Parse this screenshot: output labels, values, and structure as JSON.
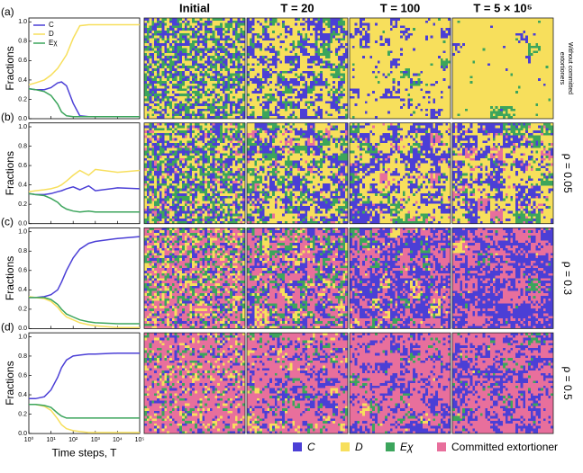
{
  "columns": [
    "Initial",
    {
      "value": 20,
      "label": "T = 20"
    },
    {
      "value": 100,
      "label": "T = 100"
    },
    {
      "value": 500000,
      "label": "T = 5 × 10⁵"
    }
  ],
  "legend": [
    {
      "name": "C",
      "color": "#4b3fd6"
    },
    {
      "name": "D",
      "color": "#f7df5c"
    },
    {
      "name": "Eχ",
      "color": "#3ca55c"
    },
    {
      "name": "Committed extortioner",
      "color": "#e86f9c"
    }
  ],
  "chart_data": [
    {
      "type": "line",
      "panel": "(a)",
      "row_label": "Without committed extortioners",
      "ylabel": "Fractions",
      "x": [
        1,
        2,
        5,
        10,
        20,
        30,
        50,
        100,
        200,
        500,
        1000,
        10000,
        100000
      ],
      "series": [
        {
          "name": "C",
          "color": "#4b3fd6",
          "values": [
            0.31,
            0.3,
            0.3,
            0.32,
            0.37,
            0.38,
            0.34,
            0.16,
            0.03,
            0.02,
            0.02,
            0.02,
            0.02
          ]
        },
        {
          "name": "D",
          "color": "#f7df5c",
          "values": [
            0.35,
            0.37,
            0.4,
            0.45,
            0.52,
            0.58,
            0.66,
            0.83,
            0.96,
            0.97,
            0.97,
            0.97,
            0.97
          ]
        },
        {
          "name": "Eχ",
          "color": "#3ca55c",
          "values": [
            0.31,
            0.3,
            0.28,
            0.24,
            0.15,
            0.07,
            0.03,
            0.02,
            0.02,
            0.02,
            0.02,
            0.02,
            0.02
          ]
        }
      ],
      "xlim": [
        1,
        100000
      ],
      "xticks": [
        1,
        10,
        100,
        1000,
        10000,
        100000
      ],
      "log_x": true,
      "ylim": [
        0,
        1.04
      ],
      "yticks": [
        {
          "value": 0,
          "label": "0.0"
        },
        {
          "value": 0.2,
          "label": "0.2"
        },
        {
          "value": 0.4,
          "label": "0.4"
        },
        {
          "value": 0.6,
          "label": "0.6"
        },
        {
          "value": 0.8,
          "label": "0.8"
        },
        {
          "value": 1,
          "label": "1.0"
        }
      ],
      "legend": "upper left"
    },
    {
      "type": "line",
      "panel": "(b)",
      "row_label": {
        "value": 0.05,
        "label": "ρ = 0.05"
      },
      "ylabel": "Fractions",
      "x": [
        1,
        2,
        5,
        10,
        20,
        30,
        50,
        100,
        200,
        500,
        1000,
        10000,
        100000
      ],
      "series": [
        {
          "name": "C",
          "color": "#4b3fd6",
          "values": [
            0.31,
            0.3,
            0.3,
            0.31,
            0.33,
            0.34,
            0.36,
            0.38,
            0.35,
            0.39,
            0.34,
            0.37,
            0.36
          ]
        },
        {
          "name": "D",
          "color": "#f7df5c",
          "values": [
            0.33,
            0.34,
            0.35,
            0.36,
            0.38,
            0.4,
            0.44,
            0.5,
            0.55,
            0.5,
            0.56,
            0.53,
            0.55
          ]
        },
        {
          "name": "Eχ",
          "color": "#3ca55c",
          "values": [
            0.31,
            0.3,
            0.29,
            0.26,
            0.22,
            0.18,
            0.15,
            0.13,
            0.12,
            0.13,
            0.12,
            0.12,
            0.12
          ]
        }
      ],
      "xlim": [
        1,
        100000
      ],
      "xticks": [
        1,
        10,
        100,
        1000,
        10000,
        100000
      ],
      "log_x": true,
      "ylim": [
        0,
        1.04
      ],
      "yticks": [
        {
          "value": 0,
          "label": "0.0"
        },
        {
          "value": 0.2,
          "label": "0.2"
        },
        {
          "value": 0.4,
          "label": "0.4"
        },
        {
          "value": 0.6,
          "label": "0.6"
        },
        {
          "value": 0.8,
          "label": "0.8"
        },
        {
          "value": 1,
          "label": "1.0"
        }
      ]
    },
    {
      "type": "line",
      "panel": "(c)",
      "row_label": {
        "value": 0.3,
        "label": "ρ = 0.3"
      },
      "ylabel": "Fractions",
      "x": [
        1,
        2,
        5,
        10,
        20,
        30,
        50,
        100,
        200,
        500,
        1000,
        10000,
        100000
      ],
      "series": [
        {
          "name": "C",
          "color": "#4b3fd6",
          "values": [
            0.32,
            0.32,
            0.33,
            0.35,
            0.4,
            0.48,
            0.6,
            0.73,
            0.82,
            0.88,
            0.9,
            0.93,
            0.95
          ]
        },
        {
          "name": "D",
          "color": "#f7df5c",
          "values": [
            0.33,
            0.32,
            0.31,
            0.28,
            0.22,
            0.17,
            0.12,
            0.09,
            0.06,
            0.04,
            0.03,
            0.01,
            0.01
          ]
        },
        {
          "name": "Eχ",
          "color": "#3ca55c",
          "values": [
            0.32,
            0.32,
            0.32,
            0.3,
            0.25,
            0.2,
            0.15,
            0.12,
            0.09,
            0.07,
            0.06,
            0.05,
            0.05
          ]
        }
      ],
      "xlim": [
        1,
        100000
      ],
      "xticks": [
        1,
        10,
        100,
        1000,
        10000,
        100000
      ],
      "log_x": true,
      "ylim": [
        0,
        1.04
      ],
      "yticks": [
        {
          "value": 0,
          "label": "0.0"
        },
        {
          "value": 0.2,
          "label": "0.2"
        },
        {
          "value": 0.4,
          "label": "0.4"
        },
        {
          "value": 0.6,
          "label": "0.6"
        },
        {
          "value": 0.8,
          "label": "0.8"
        },
        {
          "value": 1,
          "label": "1.0"
        }
      ]
    },
    {
      "type": "line",
      "panel": "(d)",
      "row_label": {
        "value": 0.5,
        "label": "ρ = 0.5"
      },
      "ylabel": "Fractions",
      "xlabel": "Time steps, T",
      "x": [
        1,
        2,
        5,
        10,
        20,
        30,
        50,
        100,
        200,
        500,
        1000,
        10000,
        100000
      ],
      "series": [
        {
          "name": "C",
          "color": "#4b3fd6",
          "values": [
            0.36,
            0.36,
            0.38,
            0.45,
            0.58,
            0.68,
            0.76,
            0.8,
            0.81,
            0.82,
            0.82,
            0.83,
            0.83
          ]
        },
        {
          "name": "D",
          "color": "#f7df5c",
          "values": [
            0.3,
            0.3,
            0.28,
            0.24,
            0.15,
            0.09,
            0.05,
            0.03,
            0.02,
            0.01,
            0.01,
            0.01,
            0.01
          ]
        },
        {
          "name": "Eχ",
          "color": "#3ca55c",
          "values": [
            0.3,
            0.3,
            0.29,
            0.27,
            0.21,
            0.18,
            0.16,
            0.16,
            0.16,
            0.16,
            0.16,
            0.16,
            0.16
          ]
        }
      ],
      "xlim": [
        1,
        100000
      ],
      "xticks": [
        {
          "value": 1,
          "label": "10⁰"
        },
        {
          "value": 10,
          "label": "10¹"
        },
        {
          "value": 100,
          "label": "10²"
        },
        {
          "value": 1000,
          "label": "10³"
        },
        {
          "value": 10000,
          "label": "10⁴"
        },
        {
          "value": 100000,
          "label": "10⁵"
        }
      ],
      "log_x": true,
      "ylim": [
        0,
        1.04
      ],
      "yticks": [
        {
          "value": 0,
          "label": "0.0"
        },
        {
          "value": 0.2,
          "label": "0.2"
        },
        {
          "value": 0.4,
          "label": "0.4"
        },
        {
          "value": 0.6,
          "label": "0.6"
        },
        {
          "value": 0.8,
          "label": "0.8"
        },
        {
          "value": 1,
          "label": "1.0"
        }
      ]
    }
  ]
}
